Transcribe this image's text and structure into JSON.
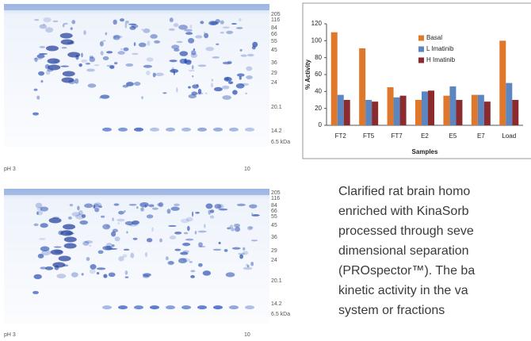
{
  "chart_data": {
    "type": "bar",
    "categories": [
      "FT2",
      "FT5",
      "FT7",
      "E2",
      "E5",
      "E7",
      "Load"
    ],
    "series": [
      {
        "name": "Basal",
        "color": "#e0782c",
        "values": [
          110,
          91,
          45,
          30,
          35,
          36,
          100
        ]
      },
      {
        "name": "L Imatinib",
        "color": "#5b86c0",
        "values": [
          36,
          30,
          33,
          40,
          46,
          36,
          50
        ]
      },
      {
        "name": "H Imatinib",
        "color": "#8b2b2e",
        "values": [
          30,
          28,
          35,
          41,
          30,
          28,
          30
        ]
      }
    ],
    "ylim": [
      0,
      120
    ],
    "yticks": [
      0,
      20,
      40,
      60,
      80,
      100,
      120
    ],
    "y_label": "% Activity",
    "x_label": "Samples"
  },
  "gels": [
    {
      "markers": [
        "205",
        "116",
        "84",
        "66",
        "55",
        "45",
        "36",
        "29",
        "24",
        "20.1",
        "14.2",
        "6.5 kDa"
      ],
      "ph_start": "pH 3",
      "ph_end": "10"
    },
    {
      "markers": [
        "205",
        "116",
        "84",
        "66",
        "55",
        "45",
        "36",
        "29",
        "24",
        "20.1",
        "14.2",
        "6.5 kDa"
      ],
      "ph_start": "pH 3",
      "ph_end": "10"
    }
  ],
  "paragraph": [
    "Clarified rat brain homo",
    "enriched with KinaSorb",
    "processed through seve",
    "dimensional separation",
    "(PROspector™). The ba",
    "kinetic activity in the va",
    "system or fractions"
  ]
}
